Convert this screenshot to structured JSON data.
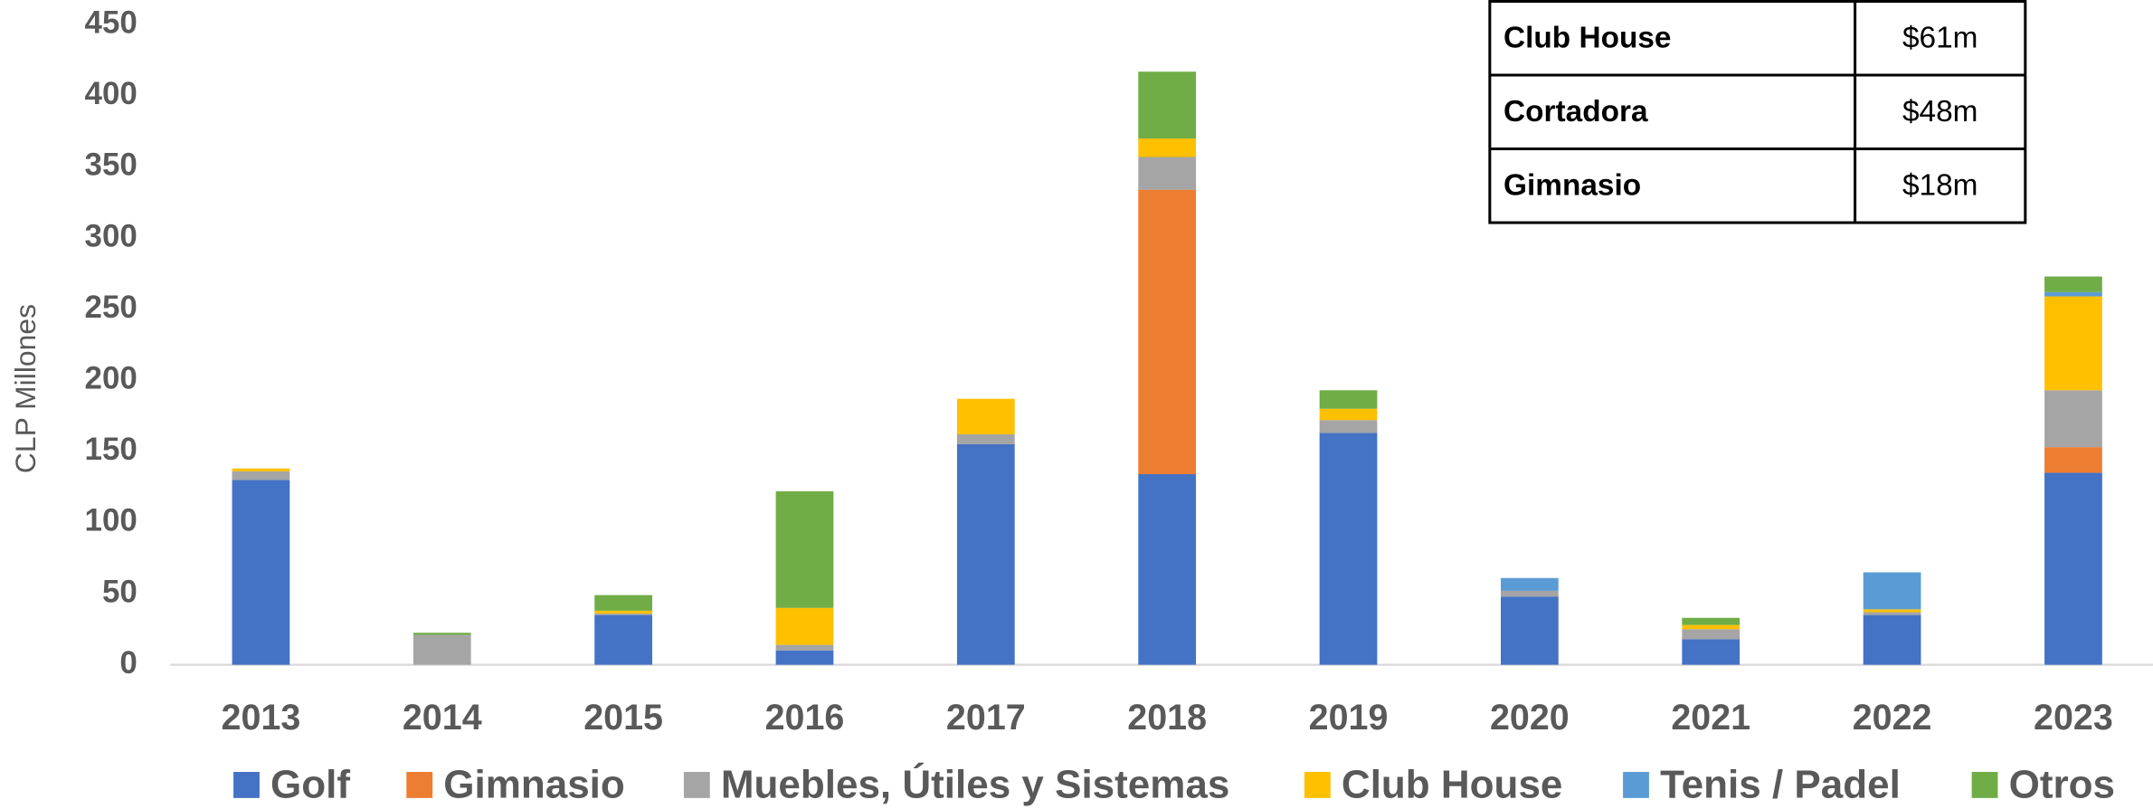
{
  "chart_data": {
    "type": "stacked_bar",
    "y_label": "CLP Millones",
    "categories": [
      "2013",
      "2014",
      "2015",
      "2016",
      "2017",
      "2018",
      "2019",
      "2020",
      "2021",
      "2022",
      "2023"
    ],
    "series": [
      {
        "name": "Golf",
        "color": "#4472c4",
        "values": [
          130,
          0,
          35,
          10,
          155,
          134,
          163,
          48,
          18,
          35,
          135
        ]
      },
      {
        "name": "Gimnasio",
        "color": "#ed7d31",
        "values": [
          0,
          0,
          0,
          0,
          0,
          200,
          0,
          0,
          0,
          0,
          18
        ]
      },
      {
        "name": "Muebles, Útiles y Sistemas",
        "color": "#a5a5a5",
        "values": [
          6,
          21,
          1,
          4,
          7,
          23,
          9,
          4,
          7,
          2,
          40
        ]
      },
      {
        "name": "Club House",
        "color": "#ffc000",
        "values": [
          2,
          0,
          2,
          26,
          25,
          13,
          8,
          0,
          3,
          2,
          66
        ]
      },
      {
        "name": "Tenis / Padel",
        "color": "#5b9bd5",
        "values": [
          0,
          0,
          0,
          0,
          0,
          0,
          0,
          9,
          0,
          26,
          3
        ]
      },
      {
        "name": "Otros",
        "color": "#70ad47",
        "values": [
          0,
          1.5,
          11,
          82,
          0,
          47,
          13,
          0,
          5,
          0,
          11
        ]
      }
    ],
    "ylim": [
      0,
      450
    ],
    "yticks": [
      0,
      50,
      100,
      150,
      200,
      250,
      300,
      350,
      400,
      450
    ],
    "grid": false,
    "legend": "bottom",
    "table": {
      "rows": [
        [
          "Club House",
          "$61m"
        ],
        [
          "Cortadora",
          "$48m"
        ],
        [
          "Gimnasio",
          "$18m"
        ]
      ]
    }
  }
}
